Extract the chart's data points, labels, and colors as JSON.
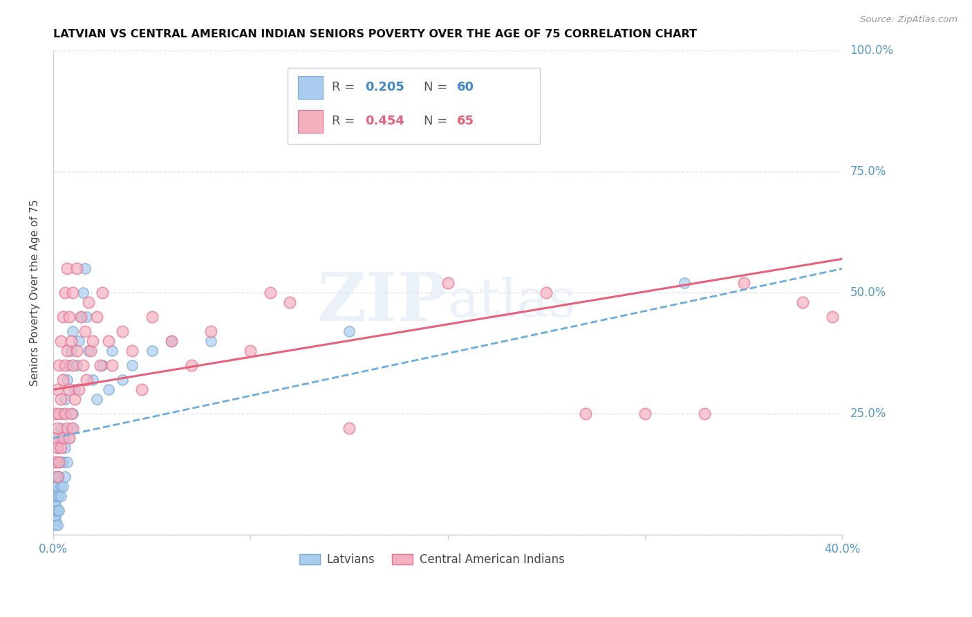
{
  "title": "LATVIAN VS CENTRAL AMERICAN INDIAN SENIORS POVERTY OVER THE AGE OF 75 CORRELATION CHART",
  "source": "Source: ZipAtlas.com",
  "ylabel": "Seniors Poverty Over the Age of 75",
  "watermark_zip": "ZIP",
  "watermark_atlas": "atlas",
  "xlim": [
    0.0,
    0.4
  ],
  "ylim": [
    0.0,
    1.0
  ],
  "yticks": [
    0.0,
    0.25,
    0.5,
    0.75,
    1.0
  ],
  "ytick_labels": [
    "",
    "25.0%",
    "50.0%",
    "75.0%",
    "100.0%"
  ],
  "xticks": [
    0.0,
    0.1,
    0.2,
    0.3,
    0.4
  ],
  "xtick_labels": [
    "0.0%",
    "",
    "",
    "",
    "40.0%"
  ],
  "latvian_color": "#aaccee",
  "latvian_edge_color": "#7aaad4",
  "central_color": "#f5b0c0",
  "central_edge_color": "#e87090",
  "latvian_R": 0.205,
  "latvian_N": 60,
  "central_R": 0.454,
  "central_N": 65,
  "background_color": "#ffffff",
  "grid_color": "#ddddee",
  "title_color": "#111111",
  "label_color": "#5599cc",
  "latvians_scatter_x": [
    0.001,
    0.001,
    0.001,
    0.001,
    0.001,
    0.001,
    0.001,
    0.001,
    0.001,
    0.001,
    0.002,
    0.002,
    0.002,
    0.002,
    0.002,
    0.002,
    0.002,
    0.003,
    0.003,
    0.003,
    0.003,
    0.003,
    0.004,
    0.004,
    0.004,
    0.004,
    0.005,
    0.005,
    0.005,
    0.006,
    0.006,
    0.006,
    0.007,
    0.007,
    0.008,
    0.008,
    0.009,
    0.009,
    0.01,
    0.01,
    0.011,
    0.012,
    0.013,
    0.014,
    0.015,
    0.016,
    0.017,
    0.018,
    0.02,
    0.022,
    0.025,
    0.028,
    0.03,
    0.035,
    0.04,
    0.05,
    0.06,
    0.08,
    0.15,
    0.32
  ],
  "latvians_scatter_y": [
    0.02,
    0.03,
    0.04,
    0.05,
    0.06,
    0.07,
    0.08,
    0.09,
    0.1,
    0.12,
    0.02,
    0.05,
    0.08,
    0.1,
    0.12,
    0.15,
    0.18,
    0.05,
    0.08,
    0.12,
    0.15,
    0.2,
    0.08,
    0.1,
    0.15,
    0.22,
    0.1,
    0.15,
    0.25,
    0.12,
    0.18,
    0.28,
    0.15,
    0.32,
    0.2,
    0.35,
    0.22,
    0.38,
    0.25,
    0.42,
    0.3,
    0.35,
    0.4,
    0.45,
    0.5,
    0.55,
    0.45,
    0.38,
    0.32,
    0.28,
    0.35,
    0.3,
    0.38,
    0.32,
    0.35,
    0.38,
    0.4,
    0.4,
    0.42,
    0.52
  ],
  "central_scatter_x": [
    0.001,
    0.001,
    0.001,
    0.002,
    0.002,
    0.002,
    0.002,
    0.003,
    0.003,
    0.003,
    0.004,
    0.004,
    0.004,
    0.005,
    0.005,
    0.005,
    0.006,
    0.006,
    0.006,
    0.007,
    0.007,
    0.007,
    0.008,
    0.008,
    0.008,
    0.009,
    0.009,
    0.01,
    0.01,
    0.01,
    0.011,
    0.012,
    0.012,
    0.013,
    0.014,
    0.015,
    0.016,
    0.017,
    0.018,
    0.019,
    0.02,
    0.022,
    0.024,
    0.025,
    0.028,
    0.03,
    0.035,
    0.04,
    0.045,
    0.05,
    0.06,
    0.07,
    0.08,
    0.1,
    0.11,
    0.12,
    0.15,
    0.2,
    0.25,
    0.27,
    0.3,
    0.33,
    0.35,
    0.38,
    0.395
  ],
  "central_scatter_y": [
    0.15,
    0.2,
    0.25,
    0.12,
    0.18,
    0.22,
    0.3,
    0.15,
    0.25,
    0.35,
    0.18,
    0.28,
    0.4,
    0.2,
    0.32,
    0.45,
    0.25,
    0.35,
    0.5,
    0.22,
    0.38,
    0.55,
    0.2,
    0.3,
    0.45,
    0.25,
    0.4,
    0.22,
    0.35,
    0.5,
    0.28,
    0.38,
    0.55,
    0.3,
    0.45,
    0.35,
    0.42,
    0.32,
    0.48,
    0.38,
    0.4,
    0.45,
    0.35,
    0.5,
    0.4,
    0.35,
    0.42,
    0.38,
    0.3,
    0.45,
    0.4,
    0.35,
    0.42,
    0.38,
    0.5,
    0.48,
    0.22,
    0.52,
    0.5,
    0.25,
    0.25,
    0.25,
    0.52,
    0.48,
    0.45
  ],
  "blue_line_x0": 0.0,
  "blue_line_y0": 0.2,
  "blue_line_x1": 0.4,
  "blue_line_y1": 0.55,
  "pink_line_x0": 0.0,
  "pink_line_y0": 0.3,
  "pink_line_x1": 0.4,
  "pink_line_y1": 0.57
}
